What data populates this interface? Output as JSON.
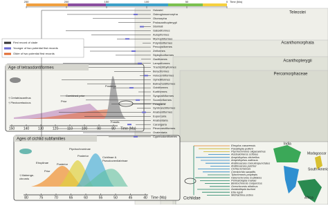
{
  "time_axis": {
    "ticks": [
      250,
      200,
      150,
      100,
      50,
      0
    ],
    "label": "Time (Ma)"
  },
  "clades": [
    "Teleostei",
    "Acanthomorphata",
    "Acanthopterygii",
    "Percomorphaceae",
    "Cichlidae"
  ],
  "legend": [
    "First record of clade",
    "Younger of two potential first records",
    "Older of two potential first records"
  ],
  "taxa": [
    "Holostei",
    "Osteoglossomorpha",
    "Otomorpha",
    "Protacanthopterygii",
    "Stomiati",
    "Galaxiiformes",
    "Aulopiformes",
    "Myctophiformes",
    "Polymixiiformes",
    "Percopsiformes",
    "Zeiformes",
    "Stylephoriformes",
    "Gadiformes",
    "Lampriformes",
    "Trachichthyiformes",
    "Beryciformes",
    "Holocentriformes",
    "Ophidiiformes",
    "Batrachoidiformes",
    "Gobiiformes",
    "Kurtiformes",
    "Syngnathiformes",
    "Scombriformes",
    "Pelagiaria",
    "Synbranchiformes",
    "Anabantiformes",
    "Eupercaria",
    "Anabantaria",
    "Carangaria",
    "Pleuronectiformes",
    "Ovalentaria",
    "Cyprinodontiformes"
  ],
  "inset_tetra": {
    "title": "Age of tetraodontiformes",
    "labels": [
      "† Cretatriacanthus",
      "† Plectocretacicus",
      "Combined prior",
      "Prior",
      "Posterior"
    ],
    "fossils": "Fossils",
    "ticks": [
      150,
      140,
      130,
      120,
      110,
      100,
      90,
      80
    ],
    "axis_label": "Time (Ma)"
  },
  "inset_cichlid": {
    "title": "Ages of cichlid subfamilies",
    "etroplinae": "Etroplinae",
    "ptycho": "Ptychochrominae",
    "cichlinae": [
      "Cichlinae &",
      "Pseudocrenilabrinae"
    ],
    "posterior_a": "Posterior",
    "posterior_b": "Posterior",
    "prior": "Prior",
    "fossil": [
      "† Mahenge-",
      "chromis"
    ],
    "ticks": [
      80,
      75,
      70,
      65,
      60,
      55,
      50,
      45,
      40
    ],
    "axis_label": "Time (Ma)"
  },
  "regions": [
    "India",
    "Madagascar",
    "South America",
    "Africa"
  ],
  "cichlid_taxa": [
    "Etroplus canarensis",
    "Paratilapia polleni",
    "Ptychochromis oligacanthus",
    "Australoheros scitulus",
    "Amphilophus citrinellus",
    "Amphilophus zaliosus",
    "Andinoacara coeruleopunctatus",
    "Andinoacara pulcher",
    "Cichla temensis",
    "Crenicichla saxatilis",
    "Tylochromis polylepis",
    "Heterochromis multidens",
    "Pelmatolapia mariae",
    "Bentochromis conjunctus",
    "Oreochromis niloticus",
    "Astatotilapia burtoni",
    "Etia nguti",
    "Metriaclima zebra"
  ]
}
